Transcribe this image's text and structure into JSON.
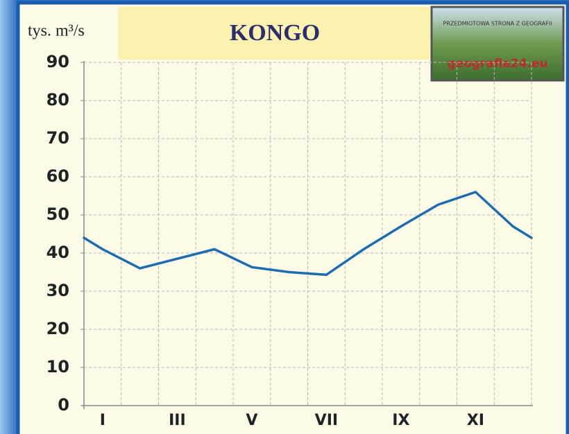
{
  "chart_data": {
    "type": "line",
    "title": "KONGO",
    "y_label": "tys. m³/s",
    "logo": {
      "tagline": "PRZEDMIOTOWA STRONA Z GEOGRAFII",
      "site": "geografia24.eu"
    },
    "categories": [
      "I",
      null,
      "III",
      null,
      "V",
      null,
      "VII",
      null,
      "IX",
      null,
      "XI",
      null
    ],
    "series": [
      {
        "name": "Kongo",
        "color": "#1e6cb0",
        "values": [
          41,
          36,
          38.5,
          41,
          36.3,
          35,
          34.3,
          41,
          47,
          52.7,
          56,
          47
        ]
      }
    ],
    "ylim": [
      0,
      90
    ],
    "yticks": [
      0,
      10,
      20,
      30,
      40,
      50,
      60,
      70,
      80,
      90
    ],
    "grid": true
  }
}
